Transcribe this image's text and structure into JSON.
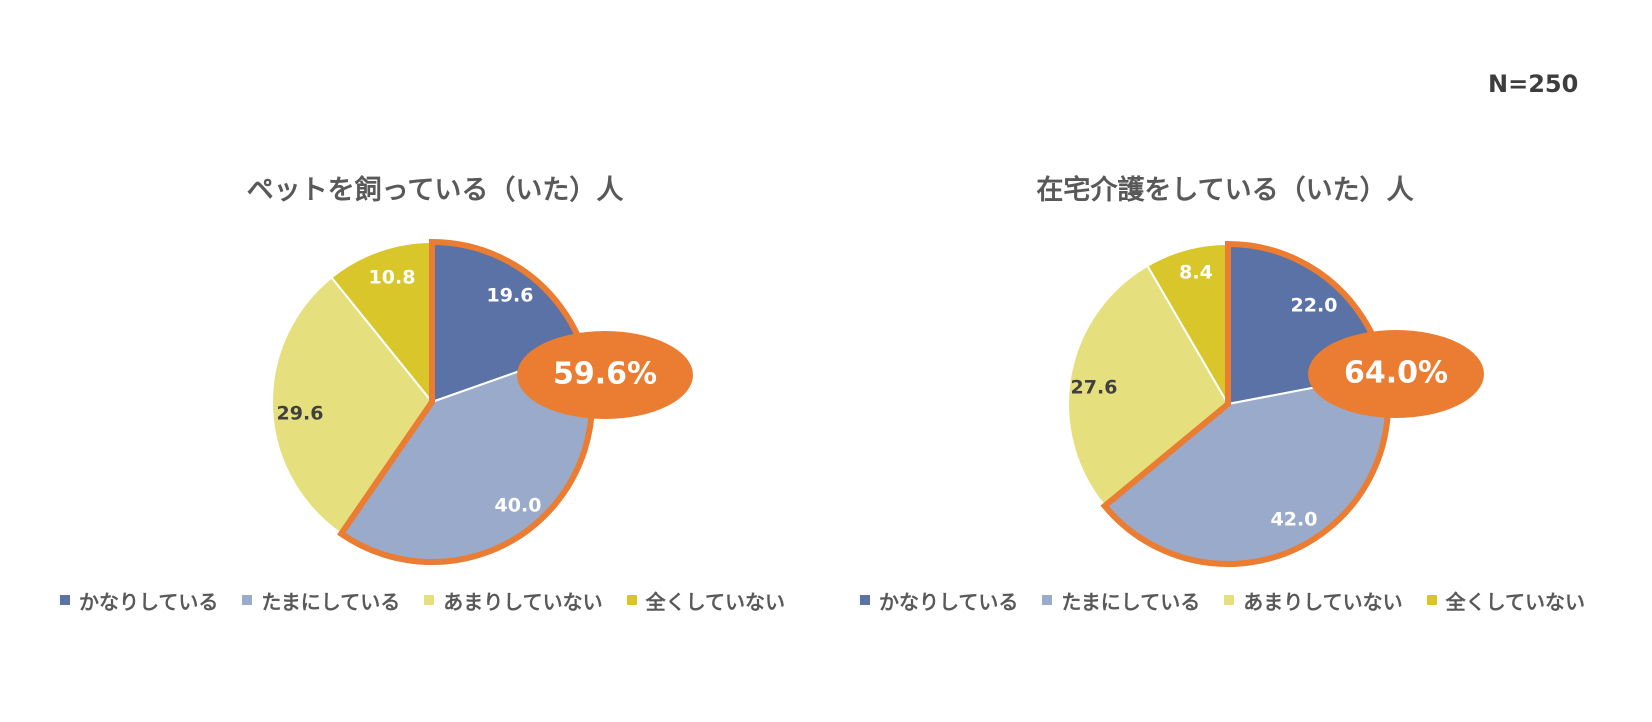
{
  "sample_size": "N=250",
  "colors": {
    "かなりしている": "#5b72a6",
    "たまにしている": "#9aaaca",
    "あまりしていない": "#e6df7e",
    "全くしていない": "#d9c62a",
    "highlight": "#ea7d31"
  },
  "chart_data": [
    {
      "type": "pie",
      "title": "ペットを飼っている（いた）人",
      "labels": [
        "かなりしている",
        "たまにしている",
        "あまりしていない",
        "全くしていない"
      ],
      "values": [
        19.6,
        40.0,
        29.6,
        10.8
      ],
      "value_labels": [
        "19.6",
        "40.0",
        "29.6",
        "10.8"
      ],
      "highlight_total": "59.6%",
      "highlighted_slices": [
        "かなりしている",
        "たまにしている"
      ],
      "legend_position": "bottom"
    },
    {
      "type": "pie",
      "title": "在宅介護をしている（いた）人",
      "labels": [
        "かなりしている",
        "たまにしている",
        "あまりしていない",
        "全くしていない"
      ],
      "values": [
        22.0,
        42.0,
        27.6,
        8.4
      ],
      "value_labels": [
        "22.0",
        "42.0",
        "27.6",
        "8.4"
      ],
      "highlight_total": "64.0%",
      "highlighted_slices": [
        "かなりしている",
        "たまにしている"
      ],
      "legend_position": "bottom"
    }
  ]
}
